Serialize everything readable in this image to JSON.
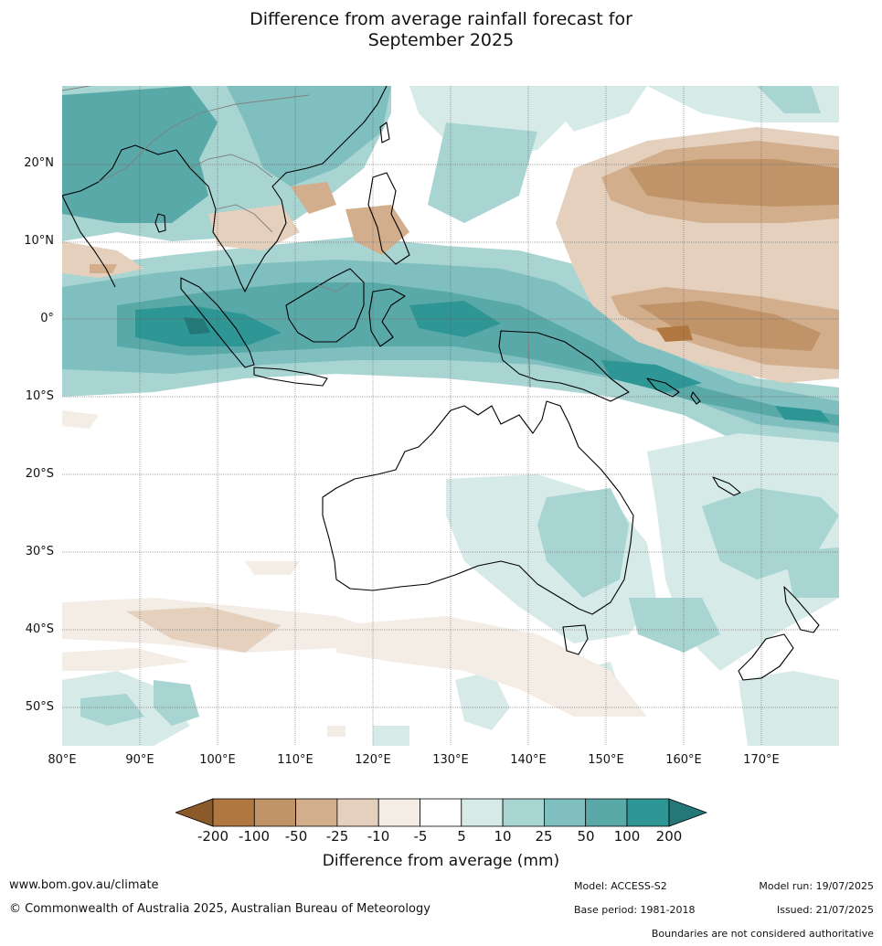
{
  "title_line1": "Difference from average rainfall forecast for",
  "title_line2": "September 2025",
  "lat_labels": [
    "20°N",
    "10°N",
    "0°",
    "10°S",
    "20°S",
    "30°S",
    "40°S",
    "50°S"
  ],
  "lon_labels": [
    "80°E",
    "90°E",
    "100°E",
    "110°E",
    "120°E",
    "130°E",
    "140°E",
    "150°E",
    "160°E",
    "170°E"
  ],
  "legend": {
    "title": "Difference from average (mm)",
    "ticks": [
      "-200",
      "-100",
      "-50",
      "-25",
      "-10",
      "-5",
      "5",
      "10",
      "25",
      "50",
      "100",
      "200"
    ],
    "colors": [
      "#8c5a2a",
      "#b07840",
      "#c09468",
      "#d2ae8c",
      "#e4d0bc",
      "#f3ede6",
      "#ffffff",
      "#d6eae8",
      "#a8d4d2",
      "#80bfbf",
      "#5aa9a9",
      "#2f9696",
      "#257878"
    ]
  },
  "footer": {
    "website": "www.bom.gov.au/climate",
    "copyright": "© Commonwealth of Australia 2025, Australian Bureau of Meteorology",
    "model": "Model: ACCESS-S2",
    "base_period": "Base period: 1981-2018",
    "model_run": "Model run: 19/07/2025",
    "issued": "Issued: 21/07/2025",
    "boundaries_note": "Boundaries are not considered authoritative"
  }
}
